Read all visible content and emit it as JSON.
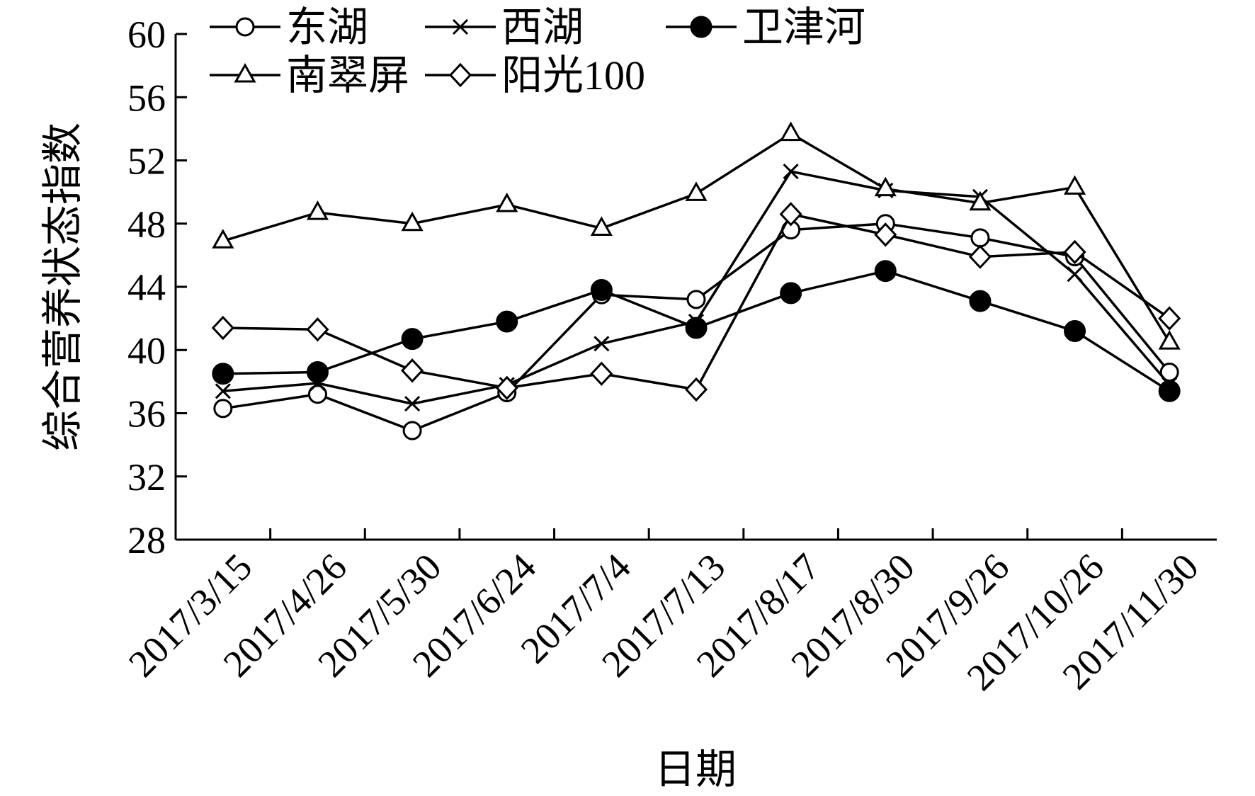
{
  "chart_data": {
    "type": "line",
    "xlabel": "日期",
    "ylabel": "综合营养状态指数",
    "ylim": [
      28,
      60
    ],
    "yticks": [
      28,
      32,
      36,
      40,
      44,
      48,
      52,
      56,
      60
    ],
    "categories": [
      "2017/3/15",
      "2017/4/26",
      "2017/5/30",
      "2017/6/24",
      "2017/7/4",
      "2017/7/13",
      "2017/8/17",
      "2017/8/30",
      "2017/9/26",
      "2017/10/26",
      "2017/11/30"
    ],
    "grid": false,
    "legend_position": "top",
    "series": [
      {
        "name": "东湖",
        "marker": "circle-open",
        "values": [
          36.3,
          37.2,
          34.9,
          37.3,
          43.5,
          43.2,
          47.6,
          48.0,
          47.1,
          45.9,
          38.6
        ]
      },
      {
        "name": "西湖",
        "marker": "x",
        "values": [
          37.4,
          37.9,
          36.6,
          37.8,
          40.4,
          41.8,
          51.3,
          50.1,
          49.7,
          44.8,
          37.8
        ]
      },
      {
        "name": "卫津河",
        "marker": "circle-filled",
        "values": [
          38.5,
          38.6,
          40.7,
          41.8,
          43.8,
          41.4,
          43.6,
          45.0,
          43.1,
          41.2,
          37.4
        ]
      },
      {
        "name": "南翠屏",
        "marker": "triangle-open",
        "values": [
          46.9,
          48.7,
          48.0,
          49.2,
          47.7,
          49.9,
          53.7,
          50.2,
          49.3,
          50.3,
          40.5
        ]
      },
      {
        "name": "阳光100",
        "marker": "diamond-open",
        "values": [
          41.4,
          41.3,
          38.7,
          37.6,
          38.5,
          37.5,
          48.6,
          47.3,
          45.9,
          46.2,
          42.0
        ]
      }
    ]
  }
}
